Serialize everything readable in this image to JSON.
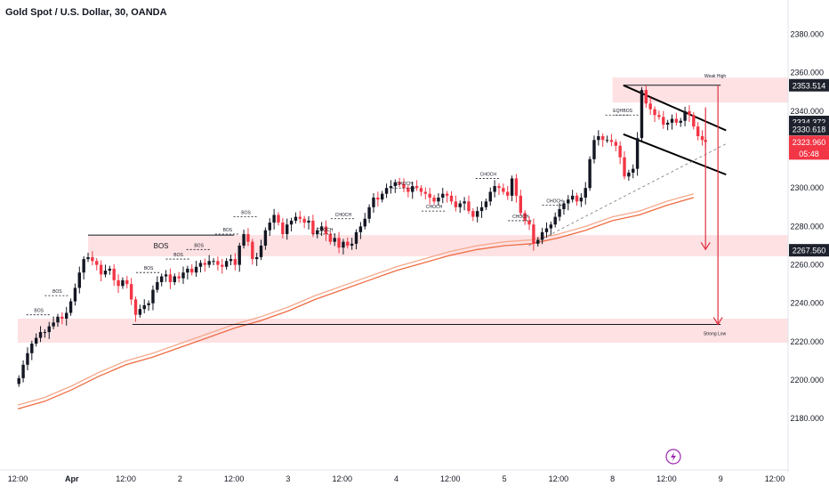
{
  "chart_data": {
    "type": "candlestick",
    "title": "Gold Spot / U.S. Dollar, 30, OANDA",
    "ylim": [
      2175,
      2390
    ],
    "y_ticks": [
      "2180.000",
      "2200.000",
      "2220.000",
      "2240.000",
      "2260.000",
      "2280.000",
      "2300.000",
      "2320.000",
      "2340.000",
      "2360.000",
      "2380.000"
    ],
    "x_ticks": [
      {
        "label": "12:00",
        "t": 0
      },
      {
        "label": "Apr",
        "t": 1
      },
      {
        "label": "12:00",
        "t": 2
      },
      {
        "label": "2",
        "t": 3
      },
      {
        "label": "12:00",
        "t": 4
      },
      {
        "label": "3",
        "t": 5
      },
      {
        "label": "12:00",
        "t": 6
      },
      {
        "label": "4",
        "t": 7
      },
      {
        "label": "12:00",
        "t": 8
      },
      {
        "label": "5",
        "t": 9
      },
      {
        "label": "12:00",
        "t": 10
      },
      {
        "label": "8",
        "t": 11
      },
      {
        "label": "12:00",
        "t": 12
      },
      {
        "label": "9",
        "t": 13
      },
      {
        "label": "12:00",
        "t": 14
      }
    ],
    "price_tags": [
      {
        "label": "2353.514",
        "value": 2353.5,
        "style": "dark"
      },
      {
        "label": "2334.372",
        "value": 2334.4,
        "style": "dark"
      },
      {
        "label": "2330.618",
        "value": 2330.6,
        "style": "dark"
      },
      {
        "label": "2323.960",
        "value": 2324.0,
        "style": "red"
      },
      {
        "label": "05:48",
        "value": 2318.0,
        "style": "red"
      },
      {
        "label": "2267.560",
        "value": 2267.6,
        "style": "dark"
      }
    ],
    "zones": [
      {
        "t0": 1.3,
        "t1": 4.0,
        "y0": 2264.5,
        "y1": 2275.5,
        "label": "BOS"
      },
      {
        "t0": 4.0,
        "t1": 14.5,
        "y0": 2264.5,
        "y1": 2275.5,
        "label": ""
      },
      {
        "t0": 11.0,
        "t1": 14.5,
        "y0": 2344.5,
        "y1": 2357.5,
        "label": ""
      },
      {
        "t0": 0.0,
        "t1": 14.5,
        "y0": 2219.5,
        "y1": 2232.0,
        "label": ""
      }
    ],
    "levels": [
      {
        "t0": 1.3,
        "t1": 4.0,
        "y": 2275.5,
        "label": ""
      },
      {
        "t0": 2.12,
        "t1": 13.0,
        "y": 2229.0,
        "label": "Strong Low"
      },
      {
        "t0": 11.2,
        "t1": 13.0,
        "y": 2353.5,
        "label": "Weak High"
      }
    ],
    "structure_labels": [
      {
        "text": "BOS",
        "t": 0.39,
        "y": 2234
      },
      {
        "text": "BOS",
        "t": 0.73,
        "y": 2244
      },
      {
        "text": "BOS",
        "t": 2.42,
        "y": 2256
      },
      {
        "text": "BOS",
        "t": 2.97,
        "y": 2263
      },
      {
        "text": "BOS",
        "t": 3.35,
        "y": 2268
      },
      {
        "text": "BOS",
        "t": 3.88,
        "y": 2276
      },
      {
        "text": "BOS",
        "t": 4.22,
        "y": 2285
      },
      {
        "text": "CHOCH",
        "t": 5.68,
        "y": 2276
      },
      {
        "text": "CHOCH",
        "t": 6.02,
        "y": 2284
      },
      {
        "text": "CHOCH",
        "t": 7.15,
        "y": 2300
      },
      {
        "text": "CHOCH",
        "t": 8.7,
        "y": 2305
      },
      {
        "text": "CHOCH",
        "t": 9.3,
        "y": 2283
      },
      {
        "text": "CHOCH",
        "t": 9.93,
        "y": 2291
      },
      {
        "text": "CHOCH",
        "t": 7.7,
        "y": 2288
      },
      {
        "text": "EQH",
        "t": 11.1,
        "y": 2338
      },
      {
        "text": "BOS",
        "t": 11.28,
        "y": 2338
      }
    ],
    "ma_upper": [
      [
        0,
        2187
      ],
      [
        0.5,
        2191
      ],
      [
        1,
        2197
      ],
      [
        1.5,
        2204
      ],
      [
        2,
        2210
      ],
      [
        2.5,
        2214
      ],
      [
        3,
        2219
      ],
      [
        3.5,
        2224
      ],
      [
        4,
        2229
      ],
      [
        4.5,
        2233
      ],
      [
        5,
        2238
      ],
      [
        5.5,
        2244
      ],
      [
        6,
        2249
      ],
      [
        6.5,
        2254
      ],
      [
        7,
        2259
      ],
      [
        7.5,
        2263
      ],
      [
        8,
        2267
      ],
      [
        8.5,
        2270
      ],
      [
        9,
        2272
      ],
      [
        9.5,
        2273
      ],
      [
        10,
        2276
      ],
      [
        10.5,
        2280
      ],
      [
        11,
        2285
      ],
      [
        11.5,
        2288
      ],
      [
        12,
        2293
      ],
      [
        12.5,
        2297
      ]
    ],
    "ma_lower": [
      [
        0,
        2185
      ],
      [
        0.5,
        2189
      ],
      [
        1,
        2195
      ],
      [
        1.5,
        2202
      ],
      [
        2,
        2208
      ],
      [
        2.5,
        2212
      ],
      [
        3,
        2217
      ],
      [
        3.5,
        2222
      ],
      [
        4,
        2227
      ],
      [
        4.5,
        2231
      ],
      [
        5,
        2236
      ],
      [
        5.5,
        2242
      ],
      [
        6,
        2247
      ],
      [
        6.5,
        2252
      ],
      [
        7,
        2257
      ],
      [
        7.5,
        2261
      ],
      [
        8,
        2265
      ],
      [
        8.5,
        2268
      ],
      [
        9,
        2270
      ],
      [
        9.5,
        2271
      ],
      [
        10,
        2274
      ],
      [
        10.5,
        2278
      ],
      [
        11,
        2283
      ],
      [
        11.5,
        2286
      ],
      [
        12,
        2291
      ],
      [
        12.5,
        2295
      ]
    ],
    "trend_channel": {
      "upper": [
        [
          11.2,
          2353.5
        ],
        [
          13.1,
          2330
        ]
      ],
      "lower": [
        [
          11.2,
          2328
        ],
        [
          13.1,
          2307
        ]
      ],
      "dashed_support": [
        [
          9.45,
          2270
        ],
        [
          13.1,
          2323
        ]
      ]
    },
    "arrows": [
      {
        "t": 12.72,
        "y_from": 2342,
        "y_to": 2268
      },
      {
        "t": 12.95,
        "y_from": 2353.5,
        "y_to": 2229
      }
    ],
    "closes": [
      [
        0.02,
        2201
      ],
      [
        0.1,
        2208
      ],
      [
        0.18,
        2214
      ],
      [
        0.26,
        2219
      ],
      [
        0.34,
        2222
      ],
      [
        0.42,
        2225
      ],
      [
        0.5,
        2225
      ],
      [
        0.58,
        2228
      ],
      [
        0.66,
        2230
      ],
      [
        0.74,
        2233
      ],
      [
        0.82,
        2232
      ],
      [
        0.9,
        2235
      ],
      [
        0.98,
        2241
      ],
      [
        1.06,
        2248
      ],
      [
        1.14,
        2256
      ],
      [
        1.22,
        2263
      ],
      [
        1.3,
        2264
      ],
      [
        1.38,
        2262
      ],
      [
        1.46,
        2260
      ],
      [
        1.54,
        2255
      ],
      [
        1.62,
        2257
      ],
      [
        1.7,
        2258
      ],
      [
        1.78,
        2252
      ],
      [
        1.86,
        2249
      ],
      [
        1.94,
        2252
      ],
      [
        2.02,
        2250
      ],
      [
        2.1,
        2242
      ],
      [
        2.18,
        2234
      ],
      [
        2.26,
        2237
      ],
      [
        2.34,
        2239
      ],
      [
        2.42,
        2240
      ],
      [
        2.5,
        2247
      ],
      [
        2.58,
        2251
      ],
      [
        2.66,
        2254
      ],
      [
        2.74,
        2255
      ],
      [
        2.82,
        2251
      ],
      [
        2.9,
        2254
      ],
      [
        2.98,
        2253
      ],
      [
        3.06,
        2256
      ],
      [
        3.14,
        2258
      ],
      [
        3.22,
        2256
      ],
      [
        3.3,
        2259
      ],
      [
        3.38,
        2261
      ],
      [
        3.46,
        2260
      ],
      [
        3.54,
        2262
      ],
      [
        3.62,
        2262
      ],
      [
        3.7,
        2260
      ],
      [
        3.78,
        2259
      ],
      [
        3.86,
        2262
      ],
      [
        3.94,
        2263
      ],
      [
        4.02,
        2260
      ],
      [
        4.1,
        2270
      ],
      [
        4.18,
        2276
      ],
      [
        4.26,
        2272
      ],
      [
        4.34,
        2263
      ],
      [
        4.42,
        2264
      ],
      [
        4.5,
        2270
      ],
      [
        4.58,
        2278
      ],
      [
        4.66,
        2282
      ],
      [
        4.74,
        2286
      ],
      [
        4.82,
        2282
      ],
      [
        4.9,
        2276
      ],
      [
        4.98,
        2281
      ],
      [
        5.06,
        2283
      ],
      [
        5.14,
        2285
      ],
      [
        5.22,
        2284
      ],
      [
        5.3,
        2282
      ],
      [
        5.38,
        2283
      ],
      [
        5.46,
        2276
      ],
      [
        5.54,
        2278
      ],
      [
        5.62,
        2280
      ],
      [
        5.7,
        2276
      ],
      [
        5.78,
        2272
      ],
      [
        5.86,
        2274
      ],
      [
        5.94,
        2269
      ],
      [
        6.02,
        2272
      ],
      [
        6.1,
        2270
      ],
      [
        6.18,
        2271
      ],
      [
        6.26,
        2277
      ],
      [
        6.34,
        2280
      ],
      [
        6.42,
        2284
      ],
      [
        6.5,
        2290
      ],
      [
        6.58,
        2295
      ],
      [
        6.66,
        2294
      ],
      [
        6.74,
        2297
      ],
      [
        6.82,
        2300
      ],
      [
        6.9,
        2301
      ],
      [
        6.98,
        2303
      ],
      [
        7.06,
        2302
      ],
      [
        7.14,
        2300
      ],
      [
        7.22,
        2298
      ],
      [
        7.3,
        2301
      ],
      [
        7.38,
        2300
      ],
      [
        7.46,
        2298
      ],
      [
        7.54,
        2297
      ],
      [
        7.62,
        2295
      ],
      [
        7.7,
        2293
      ],
      [
        7.78,
        2295
      ],
      [
        7.86,
        2297
      ],
      [
        7.94,
        2296
      ],
      [
        8.02,
        2293
      ],
      [
        8.1,
        2290
      ],
      [
        8.18,
        2292
      ],
      [
        8.26,
        2293
      ],
      [
        8.34,
        2288
      ],
      [
        8.42,
        2285
      ],
      [
        8.5,
        2288
      ],
      [
        8.58,
        2290
      ],
      [
        8.66,
        2293
      ],
      [
        8.74,
        2298
      ],
      [
        8.82,
        2301
      ],
      [
        8.9,
        2300
      ],
      [
        8.98,
        2298
      ],
      [
        9.06,
        2296
      ],
      [
        9.14,
        2305
      ],
      [
        9.22,
        2296
      ],
      [
        9.3,
        2287
      ],
      [
        9.38,
        2283
      ],
      [
        9.46,
        2281
      ],
      [
        9.54,
        2271
      ],
      [
        9.62,
        2273
      ],
      [
        9.7,
        2277
      ],
      [
        9.78,
        2279
      ],
      [
        9.86,
        2281
      ],
      [
        9.94,
        2285
      ],
      [
        10.02,
        2289
      ],
      [
        10.1,
        2292
      ],
      [
        10.18,
        2294
      ],
      [
        10.26,
        2296
      ],
      [
        10.34,
        2293
      ],
      [
        10.42,
        2295
      ],
      [
        10.5,
        2300
      ],
      [
        10.58,
        2315
      ],
      [
        10.66,
        2325
      ],
      [
        10.74,
        2327
      ],
      [
        10.82,
        2325
      ],
      [
        10.9,
        2325
      ],
      [
        10.98,
        2324
      ],
      [
        11.06,
        2322
      ],
      [
        11.14,
        2316
      ],
      [
        11.22,
        2306
      ],
      [
        11.3,
        2308
      ],
      [
        11.38,
        2310
      ],
      [
        11.46,
        2326
      ],
      [
        11.54,
        2351
      ],
      [
        11.62,
        2344
      ],
      [
        11.7,
        2341
      ],
      [
        11.78,
        2338
      ],
      [
        11.86,
        2337
      ],
      [
        11.94,
        2333
      ],
      [
        12.02,
        2334
      ],
      [
        12.1,
        2336
      ],
      [
        12.18,
        2334
      ],
      [
        12.26,
        2335
      ],
      [
        12.34,
        2340
      ],
      [
        12.42,
        2338
      ],
      [
        12.5,
        2332
      ],
      [
        12.58,
        2327
      ],
      [
        12.66,
        2325
      ],
      [
        12.72,
        2324
      ]
    ],
    "watermark_icon": "lightning-icon",
    "colors": {
      "up": "#131722",
      "down": "#f23645",
      "zone": "#fde1e3",
      "ma_upper": "#f5a88b",
      "ma_lower": "#ee6c42",
      "arrow": "#e0303f",
      "tag_dark": "#1e222d",
      "tag_red": "#f23645",
      "logo": "#9c27b0"
    }
  }
}
